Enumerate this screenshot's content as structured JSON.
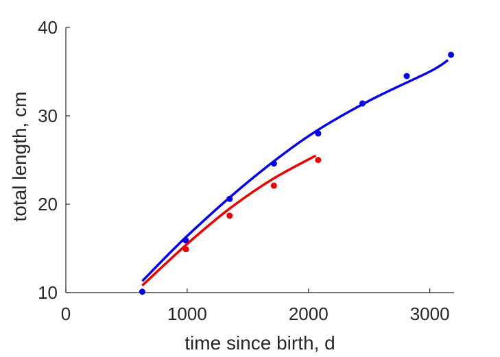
{
  "chart_data": {
    "type": "scatter",
    "title": "",
    "xlabel": "time since birth, d",
    "ylabel": "total length, cm",
    "xlim": [
      0,
      3200
    ],
    "ylim": [
      10,
      40
    ],
    "xticks": [
      0,
      1000,
      2000,
      3000
    ],
    "yticks": [
      10,
      20,
      30,
      40
    ],
    "xtick_labels": [
      "0",
      "1000",
      "2000",
      "3000"
    ],
    "ytick_labels": [
      "10",
      "20",
      "30",
      "40"
    ],
    "grid": false,
    "legend": "none",
    "series": [
      {
        "color": "#0000ee",
        "points": {
          "x": [
            630,
            990,
            1350,
            1715,
            2080,
            2445,
            2810,
            3175
          ],
          "y": [
            10.1,
            15.9,
            20.6,
            24.6,
            28.0,
            31.4,
            34.5,
            36.9
          ]
        },
        "fit": {
          "x": [
            630,
            1000,
            1500,
            2000,
            2500,
            3000,
            3150
          ],
          "y": [
            11.3,
            16.4,
            22.5,
            27.7,
            31.7,
            35.0,
            36.3
          ]
        }
      },
      {
        "color": "#ee0000",
        "points": {
          "x": [
            990,
            1350,
            1715,
            2080
          ],
          "y": [
            14.9,
            18.7,
            22.1,
            25.0
          ]
        },
        "fit": {
          "x": [
            630,
            1000,
            1350,
            1700,
            2060
          ],
          "y": [
            10.8,
            15.5,
            19.5,
            22.8,
            25.5
          ]
        }
      }
    ]
  }
}
